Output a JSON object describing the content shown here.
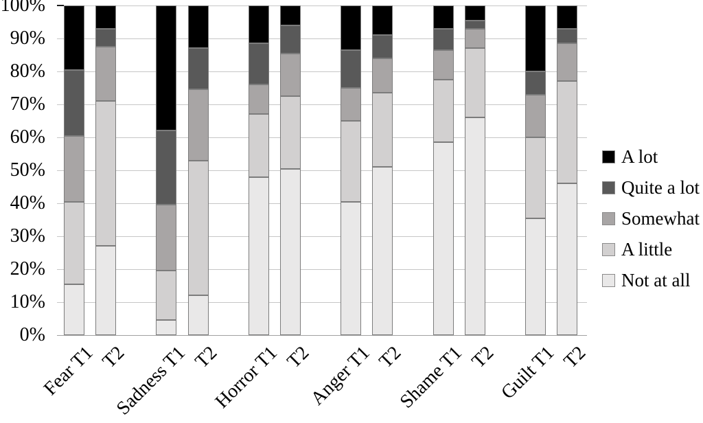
{
  "chart_data": {
    "type": "bar",
    "stacked": true,
    "percent_scale": true,
    "title": "",
    "xlabel": "",
    "ylabel": "",
    "ylim": [
      0,
      100
    ],
    "grid": true,
    "legend_position": "right",
    "categories": [
      "Fear T1",
      "T2",
      "Sadness T1",
      "T2",
      "Horror T1",
      "T2",
      "Anger T1",
      "T2",
      "Shame T1",
      "T2",
      "Guilt T1",
      "T2"
    ],
    "yticks": [
      "0%",
      "10%",
      "20%",
      "30%",
      "40%",
      "50%",
      "60%",
      "70%",
      "80%",
      "90%",
      "100%"
    ],
    "series": [
      {
        "name": "Not at all",
        "color": "#e9e8e8",
        "values": [
          15.5,
          27,
          4.5,
          12,
          48,
          50.5,
          40.5,
          51,
          58.5,
          66,
          35.5,
          46
        ]
      },
      {
        "name": "A little",
        "color": "#d2d0d0",
        "values": [
          25,
          44,
          15,
          41,
          19,
          22,
          24.5,
          22.5,
          19,
          21,
          24.5,
          31
        ]
      },
      {
        "name": "Somewhat",
        "color": "#a8a5a5",
        "values": [
          20,
          16.5,
          20,
          21.5,
          9,
          13,
          10,
          10.5,
          9,
          6,
          13,
          11.5
        ]
      },
      {
        "name": "Quite a lot",
        "color": "#595959",
        "values": [
          20,
          5.5,
          22.5,
          12.5,
          12.5,
          8.5,
          11.5,
          7,
          6.5,
          2.5,
          7,
          4.5
        ]
      },
      {
        "name": "A lot",
        "color": "#000000",
        "values": [
          19.5,
          7,
          38,
          13,
          11.5,
          6,
          13.5,
          9,
          7,
          4.5,
          20,
          7
        ]
      }
    ],
    "legend_order": [
      "A lot",
      "Quite a lot",
      "Somewhat",
      "A little",
      "Not at all"
    ]
  }
}
